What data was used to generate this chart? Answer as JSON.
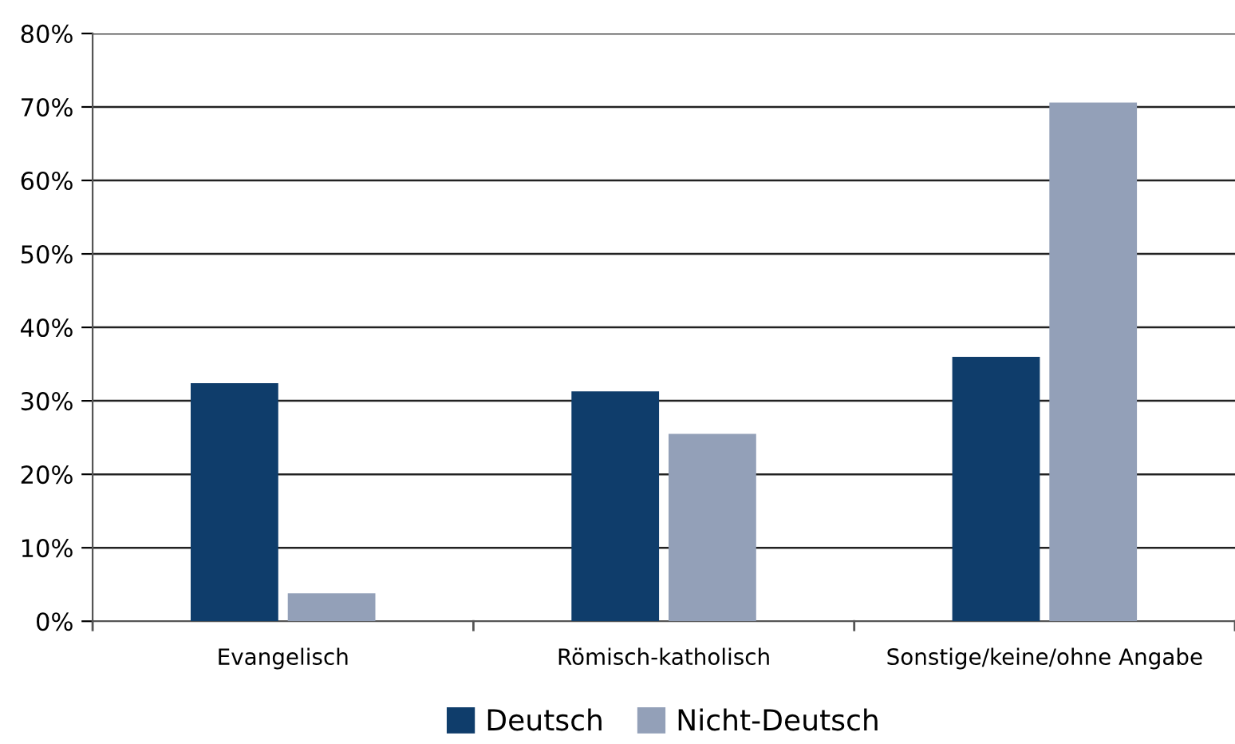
{
  "chart_data": {
    "type": "bar",
    "categories": [
      "Evangelisch",
      "Römisch-katholisch",
      "Sonstige/keine/ohne Angabe"
    ],
    "series": [
      {
        "name": "Deutsch",
        "color": "#0f3d6b",
        "values": [
          32.4,
          31.3,
          36.0
        ]
      },
      {
        "name": "Nicht-Deutsch",
        "color": "#93a0b8",
        "values": [
          3.8,
          25.5,
          70.6
        ]
      }
    ],
    "ylim": [
      0,
      80
    ],
    "yticks": [
      {
        "value": 0,
        "label": "0%"
      },
      {
        "value": 10,
        "label": "10%"
      },
      {
        "value": 20,
        "label": "20%"
      },
      {
        "value": 30,
        "label": "30%"
      },
      {
        "value": 40,
        "label": "40%"
      },
      {
        "value": 50,
        "label": "50%"
      },
      {
        "value": 60,
        "label": "60%"
      },
      {
        "value": 70,
        "label": "70%"
      },
      {
        "value": 80,
        "label": "80%"
      }
    ],
    "grid": "y",
    "legend": "bottom"
  }
}
